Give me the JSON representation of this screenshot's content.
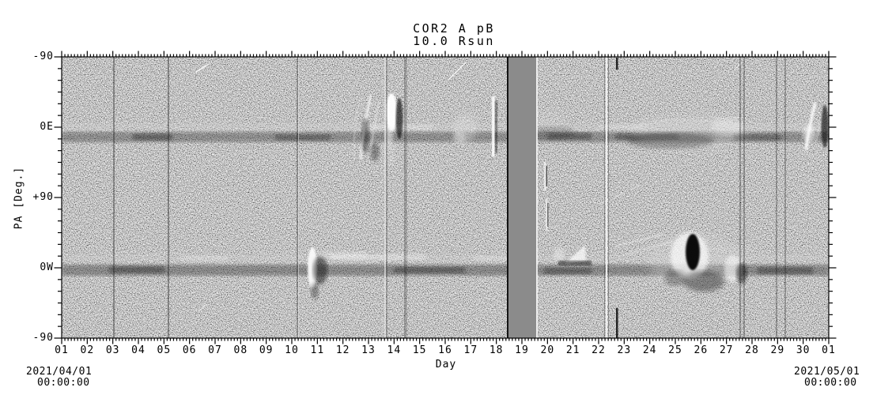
{
  "title": {
    "line1": "COR2 A pB",
    "line2": "10.0 Rsun"
  },
  "axes": {
    "x_title": "Day",
    "y_title": "PA [Deg.]",
    "x_ticks": [
      "01",
      "02",
      "03",
      "04",
      "05",
      "06",
      "07",
      "08",
      "09",
      "10",
      "11",
      "12",
      "13",
      "14",
      "15",
      "16",
      "17",
      "18",
      "19",
      "20",
      "21",
      "22",
      "23",
      "24",
      "25",
      "26",
      "27",
      "28",
      "29",
      "30",
      "01"
    ],
    "y_ticks": [
      "-90",
      "0E",
      "+90",
      "0W",
      "-90"
    ]
  },
  "annotations": {
    "start_date": "2021/04/01",
    "start_time": "00:00:00",
    "end_date": "2021/05/01",
    "end_time": "00:00:00"
  },
  "colors": {
    "background": "#ffffff",
    "noise_mean_gray": "#8c8c8c",
    "gap_band_gray": "#8b8b8b",
    "axis": "#000000"
  },
  "chart_data": {
    "type": "heatmap",
    "title": "COR2 A pB",
    "subtitle": "10.0 Rsun",
    "xlabel": "Day",
    "ylabel": "PA [Deg.]",
    "x_range": [
      "2021/04/01 00:00:00",
      "2021/05/01 00:00:00"
    ],
    "x_tick_labels": [
      "01",
      "02",
      "03",
      "04",
      "05",
      "06",
      "07",
      "08",
      "09",
      "10",
      "11",
      "12",
      "13",
      "14",
      "15",
      "16",
      "17",
      "18",
      "19",
      "20",
      "21",
      "22",
      "23",
      "24",
      "25",
      "26",
      "27",
      "28",
      "29",
      "30",
      "01"
    ],
    "y_tick_labels": [
      "-90",
      "0E",
      "+90",
      "0W",
      "-90"
    ],
    "y_axis_note": "Position angle wraps -90 -> 0E -> +90 -> 0W -> -90; grayscale running-difference speckle map",
    "streamer_bands": [
      {
        "pa": "0E",
        "desc": "dark/bright horizontal streamer band just below 0E across all days"
      },
      {
        "pa": "0W",
        "desc": "dark/bright horizontal streamer band just below 0W across all days"
      }
    ],
    "data_gaps": [
      {
        "from_day": 18.45,
        "to_day": 19.55,
        "type": "uniform-gray-band"
      },
      {
        "day": 3.05,
        "type": "line"
      },
      {
        "day": 5.2,
        "type": "line"
      },
      {
        "day": 10.2,
        "type": "line"
      },
      {
        "day": 12.65,
        "type": "bright-line"
      },
      {
        "day": 13.45,
        "type": "line"
      },
      {
        "day": 22.3,
        "type": "bright-line"
      },
      {
        "day": 26.5,
        "type": "line"
      },
      {
        "day": 26.7,
        "type": "line"
      },
      {
        "day": 28.0,
        "type": "line"
      },
      {
        "day": 28.3,
        "type": "line"
      }
    ],
    "features": [
      {
        "day": 10.7,
        "pa": "0W",
        "desc": "bright narrow vertical CME streak with dark trail"
      },
      {
        "day": 12.5,
        "pa": "0E",
        "desc": "inclined bright CME streaks with dark patches"
      },
      {
        "day": 14.0,
        "pa": "0E",
        "desc": "strong compact bright CME blob with dark edge"
      },
      {
        "day": 16.7,
        "pa": "0E",
        "desc": "faint bright fuzz"
      },
      {
        "day": 17.8,
        "pa": "0E",
        "desc": "thin bright vertical transient with dark edge"
      },
      {
        "day": 21.0,
        "pa": "0W",
        "desc": "bright CME blob"
      },
      {
        "day": 25.5,
        "pa": "0W",
        "desc": "large bright CME complex with black core and diagonal streaks"
      },
      {
        "day": 25.0,
        "pa": "0E",
        "desc": "extended mottled bright/dark streamer disturbance days 24-27"
      },
      {
        "day": 30.2,
        "pa": "0E",
        "desc": "bright CME streaks with dark crescent"
      }
    ]
  }
}
